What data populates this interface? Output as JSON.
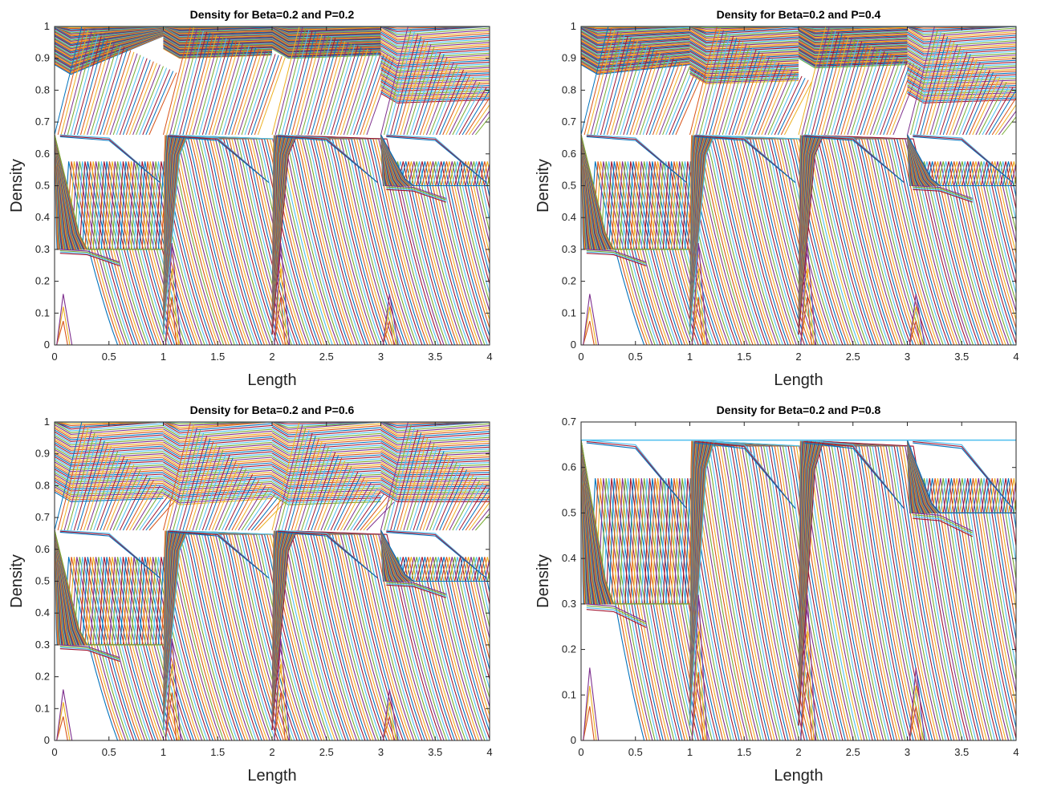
{
  "chart_data": [
    {
      "type": "line",
      "title": "Density for Beta=0.2 and P=0.2",
      "xlabel": "Length",
      "ylabel": "Density",
      "xlim": [
        0,
        4
      ],
      "ylim": [
        0,
        1
      ],
      "xticks": [
        "0",
        "0.5",
        "1",
        "1.5",
        "2",
        "2.5",
        "3",
        "3.5",
        "4"
      ],
      "yticks": [
        "0",
        "0.1",
        "0.2",
        "0.3",
        "0.4",
        "0.5",
        "0.6",
        "0.7",
        "0.8",
        "0.9",
        "1"
      ],
      "segments": [
        {
          "x": [
            0,
            1
          ],
          "start": 0.3,
          "mid": 0.66,
          "upper": 0.85,
          "upper_end": 0.97,
          "cap": 1.0
        },
        {
          "x": [
            1,
            2
          ],
          "start": 0.0,
          "mid": 0.66,
          "upper": 0.9,
          "upper_end": 0.91,
          "cap": 1.0
        },
        {
          "x": [
            2,
            3
          ],
          "start": 0.0,
          "mid": 0.66,
          "upper": 0.9,
          "upper_end": 0.91,
          "cap": 1.0
        },
        {
          "x": [
            3,
            4
          ],
          "start": 0.5,
          "mid": 0.66,
          "upper": 0.76,
          "upper_end": 0.77,
          "cap": 1.0
        }
      ],
      "grid": false,
      "legend": "none"
    },
    {
      "type": "line",
      "title": "Density for Beta=0.2 and P=0.4",
      "xlabel": "Length",
      "ylabel": "Density",
      "xlim": [
        0,
        4
      ],
      "ylim": [
        0,
        1
      ],
      "xticks": [
        "0",
        "0.5",
        "1",
        "1.5",
        "2",
        "2.5",
        "3",
        "3.5",
        "4"
      ],
      "yticks": [
        "0",
        "0.1",
        "0.2",
        "0.3",
        "0.4",
        "0.5",
        "0.6",
        "0.7",
        "0.8",
        "0.9",
        "1"
      ],
      "segments": [
        {
          "x": [
            0,
            1
          ],
          "start": 0.3,
          "mid": 0.66,
          "upper": 0.85,
          "upper_end": 0.88,
          "cap": 1.0
        },
        {
          "x": [
            1,
            2
          ],
          "start": 0.0,
          "mid": 0.66,
          "upper": 0.82,
          "upper_end": 0.83,
          "cap": 1.0
        },
        {
          "x": [
            2,
            3
          ],
          "start": 0.0,
          "mid": 0.66,
          "upper": 0.87,
          "upper_end": 0.88,
          "cap": 1.0
        },
        {
          "x": [
            3,
            4
          ],
          "start": 0.5,
          "mid": 0.66,
          "upper": 0.76,
          "upper_end": 0.77,
          "cap": 1.0
        }
      ],
      "grid": false,
      "legend": "none"
    },
    {
      "type": "line",
      "title": "Density for Beta=0.2 and P=0.6",
      "xlabel": "Length",
      "ylabel": "Density",
      "xlim": [
        0,
        4
      ],
      "ylim": [
        0,
        1
      ],
      "xticks": [
        "0",
        "0.5",
        "1",
        "1.5",
        "2",
        "2.5",
        "3",
        "3.5",
        "4"
      ],
      "yticks": [
        "0",
        "0.1",
        "0.2",
        "0.3",
        "0.4",
        "0.5",
        "0.6",
        "0.7",
        "0.8",
        "0.9",
        "1"
      ],
      "segments": [
        {
          "x": [
            0,
            1
          ],
          "start": 0.3,
          "mid": 0.66,
          "upper": 0.75,
          "upper_end": 0.76,
          "cap": 1.0
        },
        {
          "x": [
            1,
            2
          ],
          "start": 0.0,
          "mid": 0.66,
          "upper": 0.74,
          "upper_end": 0.76,
          "cap": 1.0
        },
        {
          "x": [
            2,
            3
          ],
          "start": 0.0,
          "mid": 0.66,
          "upper": 0.74,
          "upper_end": 0.75,
          "cap": 1.0
        },
        {
          "x": [
            3,
            4
          ],
          "start": 0.5,
          "mid": 0.66,
          "upper": 0.75,
          "upper_end": 0.75,
          "cap": 1.0
        }
      ],
      "grid": false,
      "legend": "none"
    },
    {
      "type": "line",
      "title": "Density for Beta=0.2 and P=0.8",
      "xlabel": "Length",
      "ylabel": "Density",
      "xlim": [
        0,
        4
      ],
      "ylim": [
        0,
        0.7
      ],
      "xticks": [
        "0",
        "0.5",
        "1",
        "1.5",
        "2",
        "2.5",
        "3",
        "3.5",
        "4"
      ],
      "yticks": [
        "0",
        "0.1",
        "0.2",
        "0.3",
        "0.4",
        "0.5",
        "0.6",
        "0.7"
      ],
      "segments": [
        {
          "x": [
            0,
            1
          ],
          "start": 0.3,
          "mid": 0.66,
          "cap": 0.66
        },
        {
          "x": [
            1,
            2
          ],
          "start": 0.0,
          "mid": 0.66,
          "cap": 0.66
        },
        {
          "x": [
            2,
            3
          ],
          "start": 0.0,
          "mid": 0.66,
          "cap": 0.66
        },
        {
          "x": [
            3,
            4
          ],
          "start": 0.5,
          "mid": 0.66,
          "cap": 0.66
        }
      ],
      "grid": false,
      "legend": "none"
    }
  ],
  "colors": [
    "#0072bd",
    "#d95319",
    "#edb120",
    "#7e2f8e",
    "#77ac30",
    "#4dbeee",
    "#a2142f"
  ]
}
